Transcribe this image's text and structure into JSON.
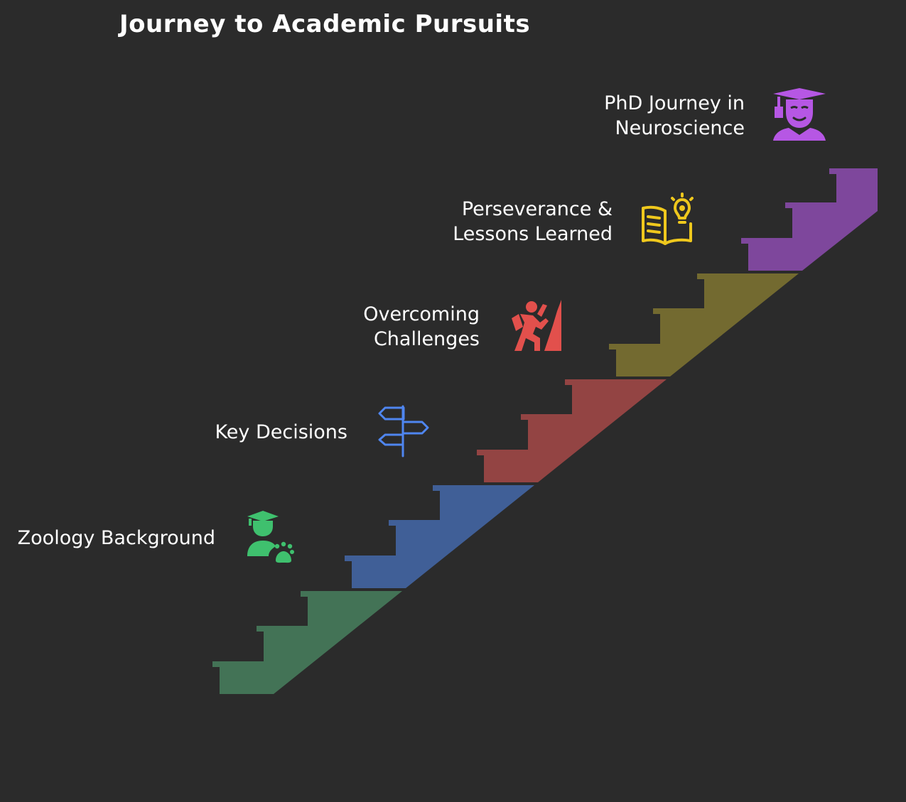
{
  "title": "Journey to Academic Pursuits",
  "steps": [
    {
      "name": "zoology-background",
      "lines": [
        "Zoology Background"
      ],
      "color": "#437356",
      "icon": "student-with-paw-icon",
      "icon_color": "#3fc06e"
    },
    {
      "name": "key-decisions",
      "lines": [
        "Key Decisions"
      ],
      "color": "#405f97",
      "icon": "signpost-icon",
      "icon_color": "#4f86f0"
    },
    {
      "name": "overcoming-challenges",
      "lines": [
        "Overcoming",
        "Challenges"
      ],
      "color": "#934443",
      "icon": "climbing-person-icon",
      "icon_color": "#e2504c"
    },
    {
      "name": "perseverance-lessons",
      "lines": [
        "Perseverance &",
        "Lessons Learned"
      ],
      "color": "#736a30",
      "icon": "book-lightbulb-icon",
      "icon_color": "#efc81d"
    },
    {
      "name": "phd-journey",
      "lines": [
        "PhD Journey in",
        "Neuroscience"
      ],
      "color": "#7e479c",
      "icon": "graduate-icon",
      "icon_color": "#b657e4"
    }
  ]
}
